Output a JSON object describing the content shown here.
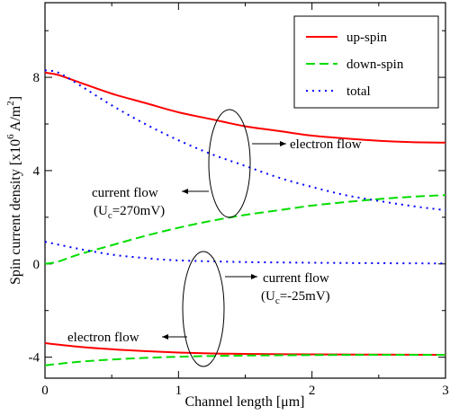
{
  "chart_data": {
    "type": "line",
    "xlabel_main": "Channel length [",
    "xlabel_unit": "μm",
    "xlabel_end": "]",
    "ylabel_main": "Spin current density [x10",
    "ylabel_exp": "6",
    "ylabel_unit": " A/m",
    "ylabel_exp2": "2",
    "ylabel_end": "]",
    "xlim": [
      0,
      3
    ],
    "ylim": [
      -4.9,
      11.2
    ],
    "xticks": [
      "0",
      "1",
      "2",
      "3"
    ],
    "xtick_values": [
      0,
      1,
      2,
      3
    ],
    "yticks": [
      "8",
      "4",
      "0",
      "-4"
    ],
    "ytick_values": [
      8,
      4,
      0,
      -4
    ],
    "legend_position": "top-right",
    "series": [
      {
        "name": "up-spin",
        "color": "#ff0000",
        "style": "solid",
        "x": [
          0,
          0.1,
          0.25,
          0.5,
          0.75,
          1.0,
          1.25,
          1.5,
          1.75,
          2.0,
          2.25,
          2.5,
          2.75,
          3.0
        ],
        "y": [
          8.2,
          8.1,
          7.8,
          7.3,
          6.9,
          6.5,
          6.2,
          5.9,
          5.7,
          5.5,
          5.38,
          5.28,
          5.22,
          5.2
        ]
      },
      {
        "name": "down-spin",
        "color": "#00dd00",
        "style": "dashed",
        "x": [
          0,
          0.1,
          0.25,
          0.5,
          0.75,
          1.0,
          1.25,
          1.5,
          1.75,
          2.0,
          2.25,
          2.5,
          2.75,
          3.0
        ],
        "y": [
          0.0,
          0.1,
          0.4,
          0.8,
          1.2,
          1.55,
          1.85,
          2.1,
          2.3,
          2.5,
          2.65,
          2.78,
          2.88,
          2.95
        ]
      },
      {
        "name": "total",
        "color": "#0000ff",
        "style": "dotted",
        "x": [
          0,
          0.1,
          0.25,
          0.5,
          0.75,
          1.0,
          1.25,
          1.5,
          1.75,
          2.0,
          2.25,
          2.5,
          2.75,
          3.0
        ],
        "y": [
          8.3,
          8.2,
          7.7,
          6.8,
          6.0,
          5.3,
          4.7,
          4.2,
          3.7,
          3.3,
          2.95,
          2.7,
          2.48,
          2.3
        ]
      },
      {
        "name": "",
        "color": "#0000ff",
        "style": "dotted",
        "x": [
          0,
          0.25,
          0.5,
          0.75,
          1.0,
          1.5,
          2.0,
          2.5,
          3.0
        ],
        "y": [
          0.95,
          0.65,
          0.4,
          0.25,
          0.15,
          0.08,
          0.05,
          0.03,
          0.02
        ]
      },
      {
        "name": "",
        "color": "#ff0000",
        "style": "solid",
        "x": [
          0,
          0.25,
          0.5,
          0.75,
          1.0,
          1.25,
          1.5,
          2.0,
          2.5,
          3.0
        ],
        "y": [
          -3.4,
          -3.55,
          -3.66,
          -3.74,
          -3.8,
          -3.84,
          -3.86,
          -3.88,
          -3.89,
          -3.9
        ]
      },
      {
        "name": "",
        "color": "#00dd00",
        "style": "dashed",
        "x": [
          0,
          0.25,
          0.5,
          0.75,
          1.0,
          1.25,
          1.5,
          2.0,
          2.5,
          3.0
        ],
        "y": [
          -4.35,
          -4.2,
          -4.1,
          -4.03,
          -3.98,
          -3.95,
          -3.93,
          -3.91,
          -3.9,
          -3.9
        ]
      }
    ],
    "annotations": {
      "electron_flow_top": "electron flow",
      "current_flow_top": "current flow",
      "current_flow_top_u": "(U",
      "current_flow_top_sub": "c",
      "current_flow_top_val": "=270mV)",
      "current_flow_bottom": "current flow",
      "current_flow_bottom_u": "(U",
      "current_flow_bottom_sub": "c",
      "current_flow_bottom_val": "=-25mV)",
      "electron_flow_bottom": "electron flow"
    }
  }
}
